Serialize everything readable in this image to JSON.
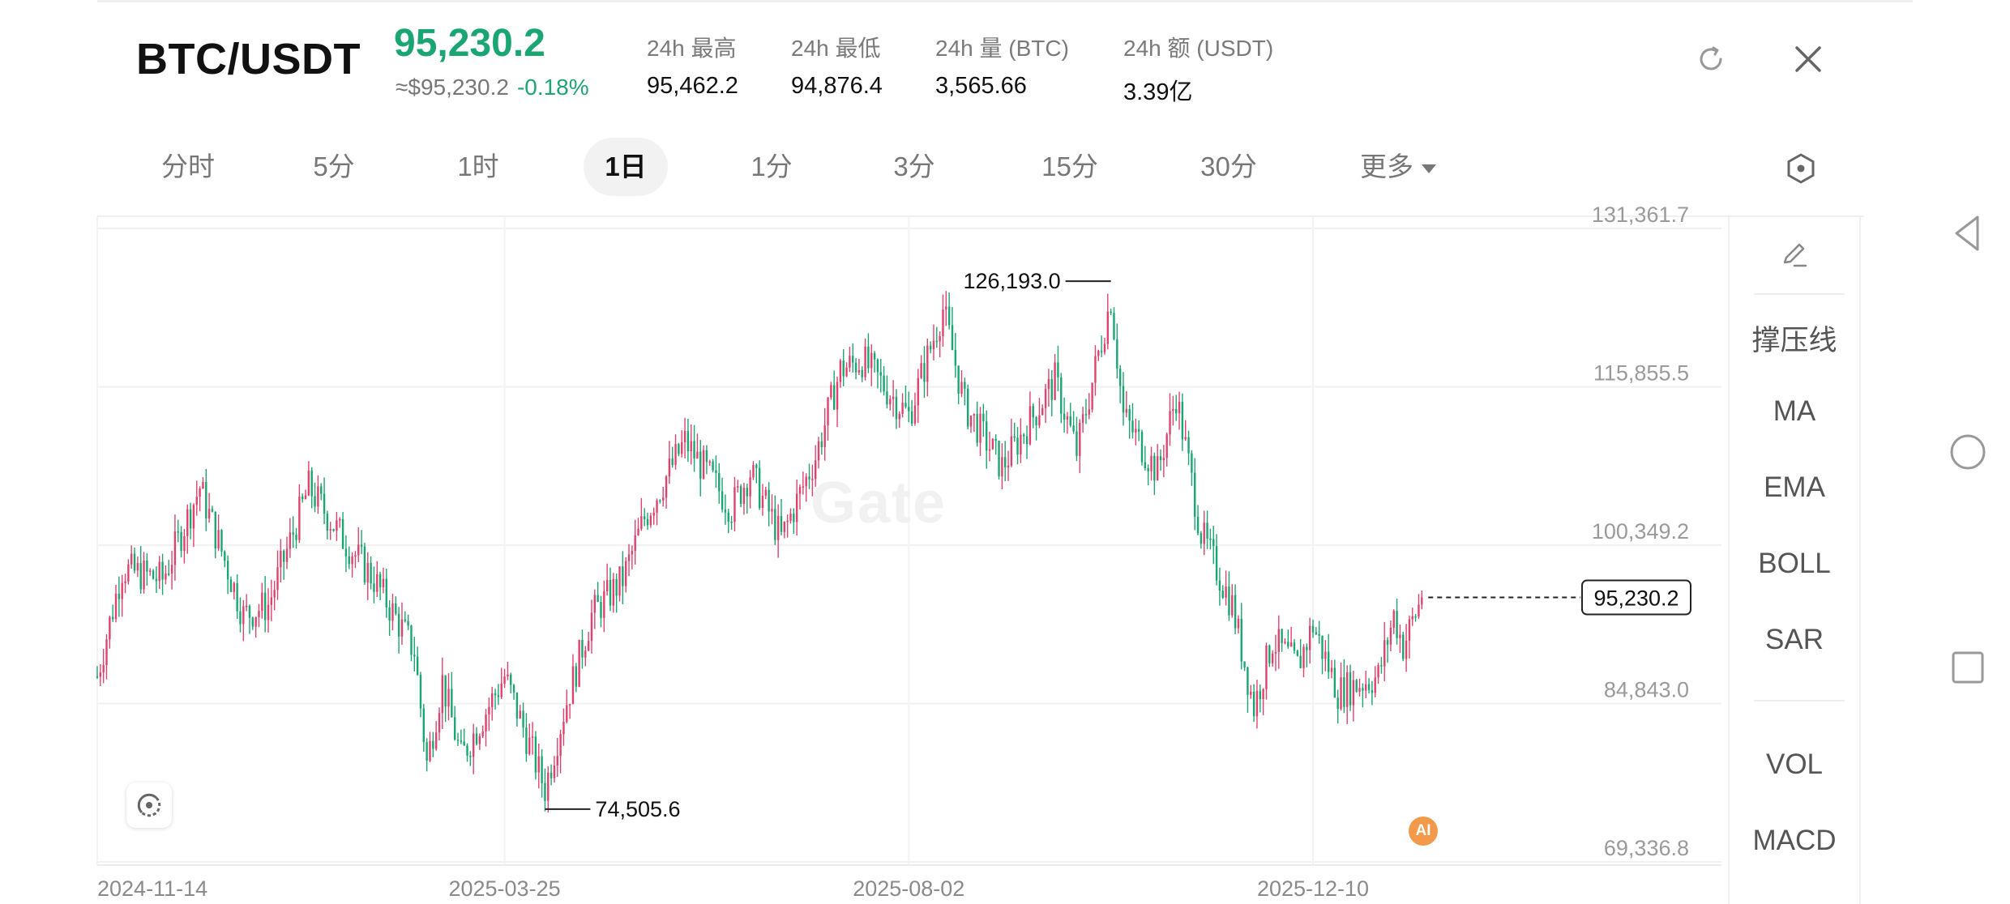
{
  "header": {
    "pair": "BTC/USDT",
    "price": "95,230.2",
    "approx": "≈$95,230.2",
    "change": "-0.18%",
    "stats": [
      {
        "label": "24h  最高",
        "value": "95,462.2"
      },
      {
        "label": "24h  最低",
        "value": "94,876.4"
      },
      {
        "label": "24h  量 (BTC)",
        "value": "3,565.66"
      },
      {
        "label": "24h  额 (USDT)",
        "value": "3.39亿"
      }
    ]
  },
  "tabs": [
    {
      "label": "分时"
    },
    {
      "label": "5分"
    },
    {
      "label": "1时"
    },
    {
      "label": "1日"
    },
    {
      "label": "1分"
    },
    {
      "label": "3分"
    },
    {
      "label": "15分"
    },
    {
      "label": "30分"
    },
    {
      "label": "更多"
    }
  ],
  "active_tab": "1日",
  "side_panel": {
    "items": [
      "撑压线",
      "MA",
      "EMA",
      "BOLL",
      "SAR",
      "VOL",
      "MACD"
    ]
  },
  "watermark": "Gate",
  "ai_badge": "AI",
  "colors": {
    "up": "#e0426e",
    "down": "#1aa672",
    "accent": "#1aa672"
  },
  "chart_data": {
    "type": "candlestick",
    "y_ticks": [
      "131,361.7",
      "115,855.5",
      "100,349.2",
      "84,843.0",
      "69,336.8"
    ],
    "y_tick_values": [
      131361.7,
      115855.5,
      100349.2,
      84843.0,
      69336.8
    ],
    "x_ticks": [
      "2024-11-14",
      "2025-03-25",
      "2025-08-02",
      "2025-12-10"
    ],
    "annotations": {
      "high": {
        "label": "126,193.0",
        "value": 126193.0,
        "date": "2025-10-06"
      },
      "low": {
        "label": "74,505.6",
        "value": 74505.6,
        "date": "2025-04-07"
      },
      "last": {
        "label": "95,230.2",
        "value": 95230.2,
        "date": "2026-01-14"
      }
    },
    "close_path": [
      [
        "2024-11-14",
        87500
      ],
      [
        "2024-11-22",
        98000
      ],
      [
        "2024-12-05",
        97000
      ],
      [
        "2024-12-17",
        106000
      ],
      [
        "2024-12-31",
        93500
      ],
      [
        "2025-01-08",
        94500
      ],
      [
        "2025-01-21",
        106000
      ],
      [
        "2025-02-01",
        101000
      ],
      [
        "2025-02-11",
        97000
      ],
      [
        "2025-02-24",
        90000
      ],
      [
        "2025-02-28",
        79000
      ],
      [
        "2025-03-05",
        87000
      ],
      [
        "2025-03-11",
        79500
      ],
      [
        "2025-03-25",
        87500
      ],
      [
        "2025-03-31",
        82500
      ],
      [
        "2025-04-07",
        76500
      ],
      [
        "2025-04-13",
        84000
      ],
      [
        "2025-04-22",
        93500
      ],
      [
        "2025-05-02",
        97000
      ],
      [
        "2025-05-09",
        103000
      ],
      [
        "2025-05-22",
        110500
      ],
      [
        "2025-06-06",
        104000
      ],
      [
        "2025-06-12",
        107500
      ],
      [
        "2025-06-22",
        101000
      ],
      [
        "2025-07-03",
        109000
      ],
      [
        "2025-07-11",
        117500
      ],
      [
        "2025-07-18",
        118500
      ],
      [
        "2025-08-02",
        113000
      ],
      [
        "2025-08-13",
        123500
      ],
      [
        "2025-08-20",
        114000
      ],
      [
        "2025-09-01",
        108000
      ],
      [
        "2025-09-18",
        116500
      ],
      [
        "2025-09-25",
        109500
      ],
      [
        "2025-10-06",
        124500
      ],
      [
        "2025-10-10",
        113000
      ],
      [
        "2025-10-21",
        107500
      ],
      [
        "2025-10-27",
        115000
      ],
      [
        "2025-11-04",
        101500
      ],
      [
        "2025-11-14",
        94500
      ],
      [
        "2025-11-21",
        84500
      ],
      [
        "2025-11-27",
        91000
      ],
      [
        "2025-12-05",
        88500
      ],
      [
        "2025-12-10",
        92500
      ],
      [
        "2025-12-18",
        86000
      ],
      [
        "2025-12-31",
        87500
      ],
      [
        "2026-01-05",
        93500
      ],
      [
        "2026-01-08",
        90500
      ],
      [
        "2026-01-14",
        95230
      ]
    ]
  }
}
